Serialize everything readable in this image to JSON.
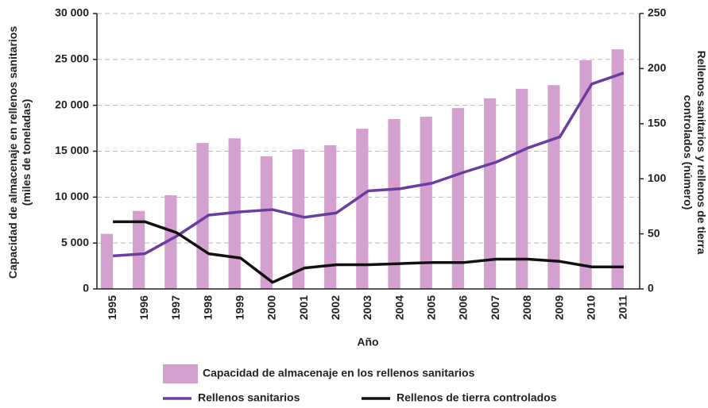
{
  "chart_data": {
    "type": "bar",
    "xlabel": "Año",
    "ylabel": "Capacidad de almacenaje en rellenos sanitarios (miles de toneladas)",
    "y2label": "Rellenos sanitarios y rellenos de tierra controlados (número)",
    "categories": [
      "1995",
      "1996",
      "1997",
      "1998",
      "1999",
      "2000",
      "2001",
      "2002",
      "2003",
      "2004",
      "2005",
      "2006",
      "2007",
      "2008",
      "2009",
      "2010",
      "2011"
    ],
    "series": [
      {
        "name": "Capacidad de almacenaje en los rellenos sanitarios",
        "type": "bar",
        "color": "#d4a0cf",
        "values": [
          6000,
          8500,
          10200,
          15900,
          16400,
          14450,
          15200,
          15650,
          17450,
          18500,
          18750,
          19700,
          20750,
          21800,
          22200,
          24900,
          26100
        ]
      },
      {
        "name": "Rellenos sanitarios",
        "type": "line",
        "axis": "y2",
        "color": "#6a3ea1",
        "values": [
          30,
          32,
          48,
          67,
          70,
          72,
          65,
          69,
          89,
          91,
          96,
          106,
          115,
          128,
          138,
          186,
          196
        ]
      },
      {
        "name": "Rellenos de tierra controlados",
        "type": "line",
        "axis": "y2",
        "color": "#111111",
        "values": [
          61,
          61,
          51,
          32,
          28,
          6,
          19,
          22,
          22,
          23,
          24,
          24,
          27,
          27,
          25,
          20,
          20
        ]
      }
    ],
    "ylim": [
      0,
      30000
    ],
    "yticks": [
      0,
      {
        "value": 5000,
        "label": "5 000"
      },
      {
        "value": 10000,
        "label": "10 000"
      },
      {
        "value": 15000,
        "label": "15 000"
      },
      {
        "value": 20000,
        "label": "20 000"
      },
      {
        "value": 25000,
        "label": "25 000"
      },
      {
        "value": 30000,
        "label": "30 000"
      }
    ],
    "y2lim": [
      0,
      250
    ],
    "y2ticks": [
      0,
      50,
      100,
      150,
      200,
      250
    ],
    "grid": true
  }
}
